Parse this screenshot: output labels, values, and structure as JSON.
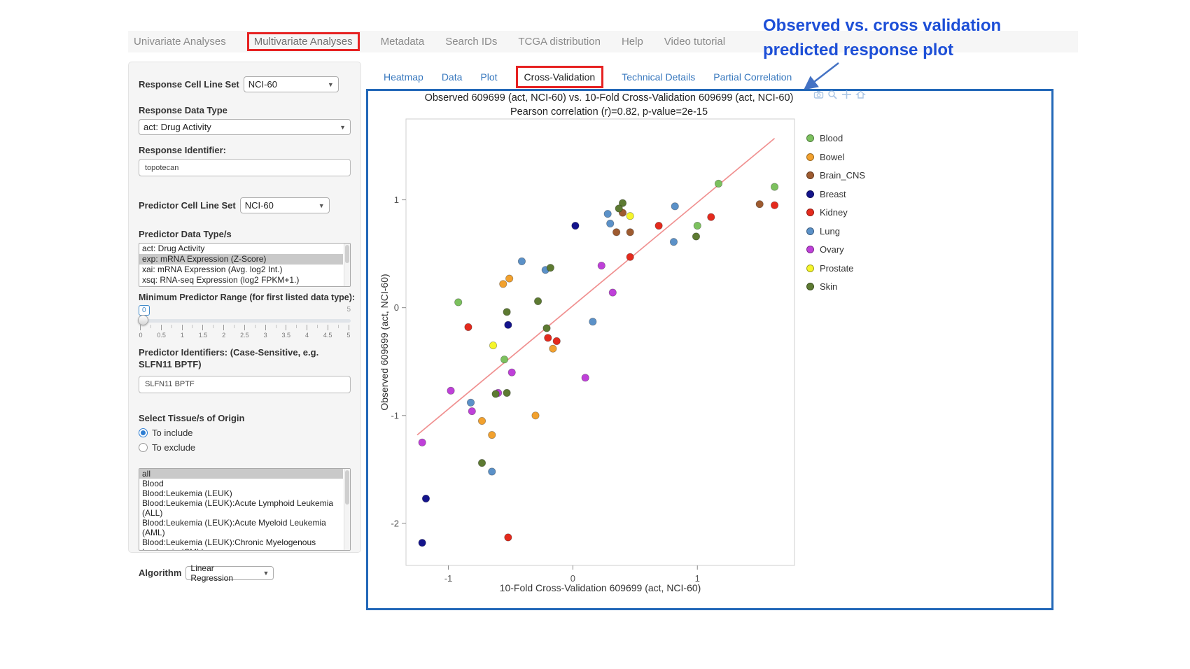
{
  "nav": {
    "tabs": [
      {
        "label": "Univariate Analyses",
        "highlighted": false
      },
      {
        "label": "Multivariate Analyses",
        "highlighted": true
      },
      {
        "label": "Metadata",
        "highlighted": false
      },
      {
        "label": "Search IDs",
        "highlighted": false
      },
      {
        "label": "TCGA distribution",
        "highlighted": false
      },
      {
        "label": "Help",
        "highlighted": false
      },
      {
        "label": "Video tutorial",
        "highlighted": false
      }
    ]
  },
  "annotation": {
    "line1": "Observed vs. cross validation",
    "line2": "predicted response plot",
    "text_color": "#1d4fd7",
    "arrow_color": "#4472c4"
  },
  "sidebar": {
    "response_cell_line_set": {
      "label": "Response Cell Line Set",
      "value": "NCI-60"
    },
    "response_data_type": {
      "label": "Response Data Type",
      "value": "act: Drug Activity"
    },
    "response_identifier": {
      "label": "Response Identifier:",
      "value": "topotecan"
    },
    "predictor_cell_line_set": {
      "label": "Predictor Cell Line Set",
      "value": "NCI-60"
    },
    "predictor_data_types": {
      "label": "Predictor Data Type/s",
      "options": [
        {
          "label": "act: Drug Activity",
          "selected": false
        },
        {
          "label": "exp: mRNA Expression (Z-Score)",
          "selected": true
        },
        {
          "label": "xai: mRNA Expression (Avg. log2 Int.)",
          "selected": false
        },
        {
          "label": "xsq: RNA-seq Expression (log2 FPKM+1.)",
          "selected": false
        }
      ]
    },
    "min_predictor_range": {
      "label": "Minimum Predictor Range (for first listed data type):",
      "value": "0",
      "max_label": "5",
      "tick_labels": [
        "0",
        "0.5",
        "1",
        "1.5",
        "2",
        "2.5",
        "3",
        "3.5",
        "4",
        "4.5",
        "5"
      ]
    },
    "predictor_identifiers": {
      "label": "Predictor Identifiers: (Case-Sensitive, e.g. SLFN11 BPTF)",
      "value": "SLFN11 BPTF"
    },
    "tissue_origin": {
      "label": "Select Tissue/s of Origin",
      "radios": [
        {
          "label": "To include",
          "selected": true
        },
        {
          "label": "To exclude",
          "selected": false
        }
      ],
      "options": [
        {
          "label": "all",
          "selected": true
        },
        {
          "label": "Blood",
          "selected": false
        },
        {
          "label": "Blood:Leukemia (LEUK)",
          "selected": false
        },
        {
          "label": "Blood:Leukemia (LEUK):Acute Lymphoid Leukemia (ALL)",
          "selected": false
        },
        {
          "label": "Blood:Leukemia (LEUK):Acute Myeloid Leukemia (AML)",
          "selected": false
        },
        {
          "label": "Blood:Leukemia (LEUK):Chronic Myelogenous Leukemia (CML)",
          "selected": false
        }
      ]
    },
    "algorithm": {
      "label": "Algorithm",
      "value": "Linear Regression"
    }
  },
  "subtabs": [
    {
      "label": "Heatmap",
      "active": false
    },
    {
      "label": "Data",
      "active": false
    },
    {
      "label": "Plot",
      "active": false
    },
    {
      "label": "Cross-Validation",
      "active": true
    },
    {
      "label": "Technical Details",
      "active": false
    },
    {
      "label": "Partial Correlation",
      "active": false
    }
  ],
  "plot": {
    "modebar_icons": [
      "camera-icon",
      "zoom-icon",
      "pan-icon",
      "reset-icon"
    ]
  },
  "chart_data": {
    "type": "scatter",
    "title": "Observed 609699 (act, NCI-60) vs. 10-Fold Cross-Validation 609699 (act, NCI-60)",
    "subtitle": "Pearson correlation (r)=0.82, p-value=2e-15",
    "xlabel": "10-Fold Cross-Validation 609699 (act, NCI-60)",
    "ylabel": "Observed 609699 (act, NCI-60)",
    "xlim": [
      -1.34,
      1.78
    ],
    "ylim": [
      -2.39,
      1.75
    ],
    "xticks": [
      -1,
      0,
      1
    ],
    "yticks": [
      -2,
      -1,
      0,
      1
    ],
    "grid": false,
    "legend_position": "right",
    "fit_line": {
      "x1": -1.25,
      "y1": -1.18,
      "x2": 1.62,
      "y2": 1.57,
      "color": "#f09090"
    },
    "series": [
      {
        "name": "Blood",
        "color": "#7cc15e",
        "points": [
          [
            -0.92,
            0.05
          ],
          [
            1.17,
            1.15
          ],
          [
            1.62,
            1.12
          ],
          [
            1.0,
            0.76
          ],
          [
            -0.55,
            -0.48
          ]
        ]
      },
      {
        "name": "Bowel",
        "color": "#f2a12e",
        "points": [
          [
            -0.56,
            0.22
          ],
          [
            -0.51,
            0.27
          ],
          [
            -0.16,
            -0.38
          ],
          [
            -0.3,
            -1.0
          ],
          [
            -0.73,
            -1.05
          ],
          [
            -0.65,
            -1.18
          ]
        ]
      },
      {
        "name": "Brain_CNS",
        "color": "#9e5b30",
        "points": [
          [
            0.35,
            0.7
          ],
          [
            0.46,
            0.7
          ],
          [
            0.4,
            0.88
          ],
          [
            1.5,
            0.96
          ]
        ]
      },
      {
        "name": "Breast",
        "color": "#14148c",
        "points": [
          [
            0.02,
            0.76
          ],
          [
            -0.52,
            -0.16
          ],
          [
            -1.18,
            -1.77
          ],
          [
            -1.21,
            -2.18
          ]
        ]
      },
      {
        "name": "Kidney",
        "color": "#e42a1d",
        "points": [
          [
            -0.84,
            -0.18
          ],
          [
            -0.2,
            -0.28
          ],
          [
            -0.13,
            -0.31
          ],
          [
            0.46,
            0.47
          ],
          [
            0.69,
            0.76
          ],
          [
            1.11,
            0.84
          ],
          [
            1.62,
            0.95
          ],
          [
            -0.52,
            -2.13
          ]
        ]
      },
      {
        "name": "Lung",
        "color": "#5b91c8",
        "points": [
          [
            -0.41,
            0.43
          ],
          [
            -0.22,
            0.35
          ],
          [
            0.28,
            0.87
          ],
          [
            0.3,
            0.78
          ],
          [
            0.82,
            0.94
          ],
          [
            0.81,
            0.61
          ],
          [
            0.16,
            -0.13
          ],
          [
            -0.82,
            -0.88
          ],
          [
            -0.65,
            -1.52
          ]
        ]
      },
      {
        "name": "Ovary",
        "color": "#bf40d9",
        "points": [
          [
            -0.98,
            -0.77
          ],
          [
            -0.6,
            -0.79
          ],
          [
            0.23,
            0.39
          ],
          [
            0.32,
            0.14
          ],
          [
            0.1,
            -0.65
          ],
          [
            -1.21,
            -1.25
          ],
          [
            -0.49,
            -0.6
          ],
          [
            -0.81,
            -0.96
          ]
        ]
      },
      {
        "name": "Prostate",
        "color": "#f5f52a",
        "points": [
          [
            0.46,
            0.85
          ],
          [
            -0.64,
            -0.35
          ]
        ]
      },
      {
        "name": "Skin",
        "color": "#5d7a32",
        "points": [
          [
            0.4,
            0.97
          ],
          [
            0.37,
            0.92
          ],
          [
            0.99,
            0.66
          ],
          [
            -0.18,
            0.37
          ],
          [
            -0.28,
            0.06
          ],
          [
            -0.53,
            -0.04
          ],
          [
            -0.21,
            -0.19
          ],
          [
            -0.53,
            -0.79
          ],
          [
            -0.62,
            -0.8
          ],
          [
            -0.73,
            -1.44
          ]
        ]
      }
    ]
  }
}
